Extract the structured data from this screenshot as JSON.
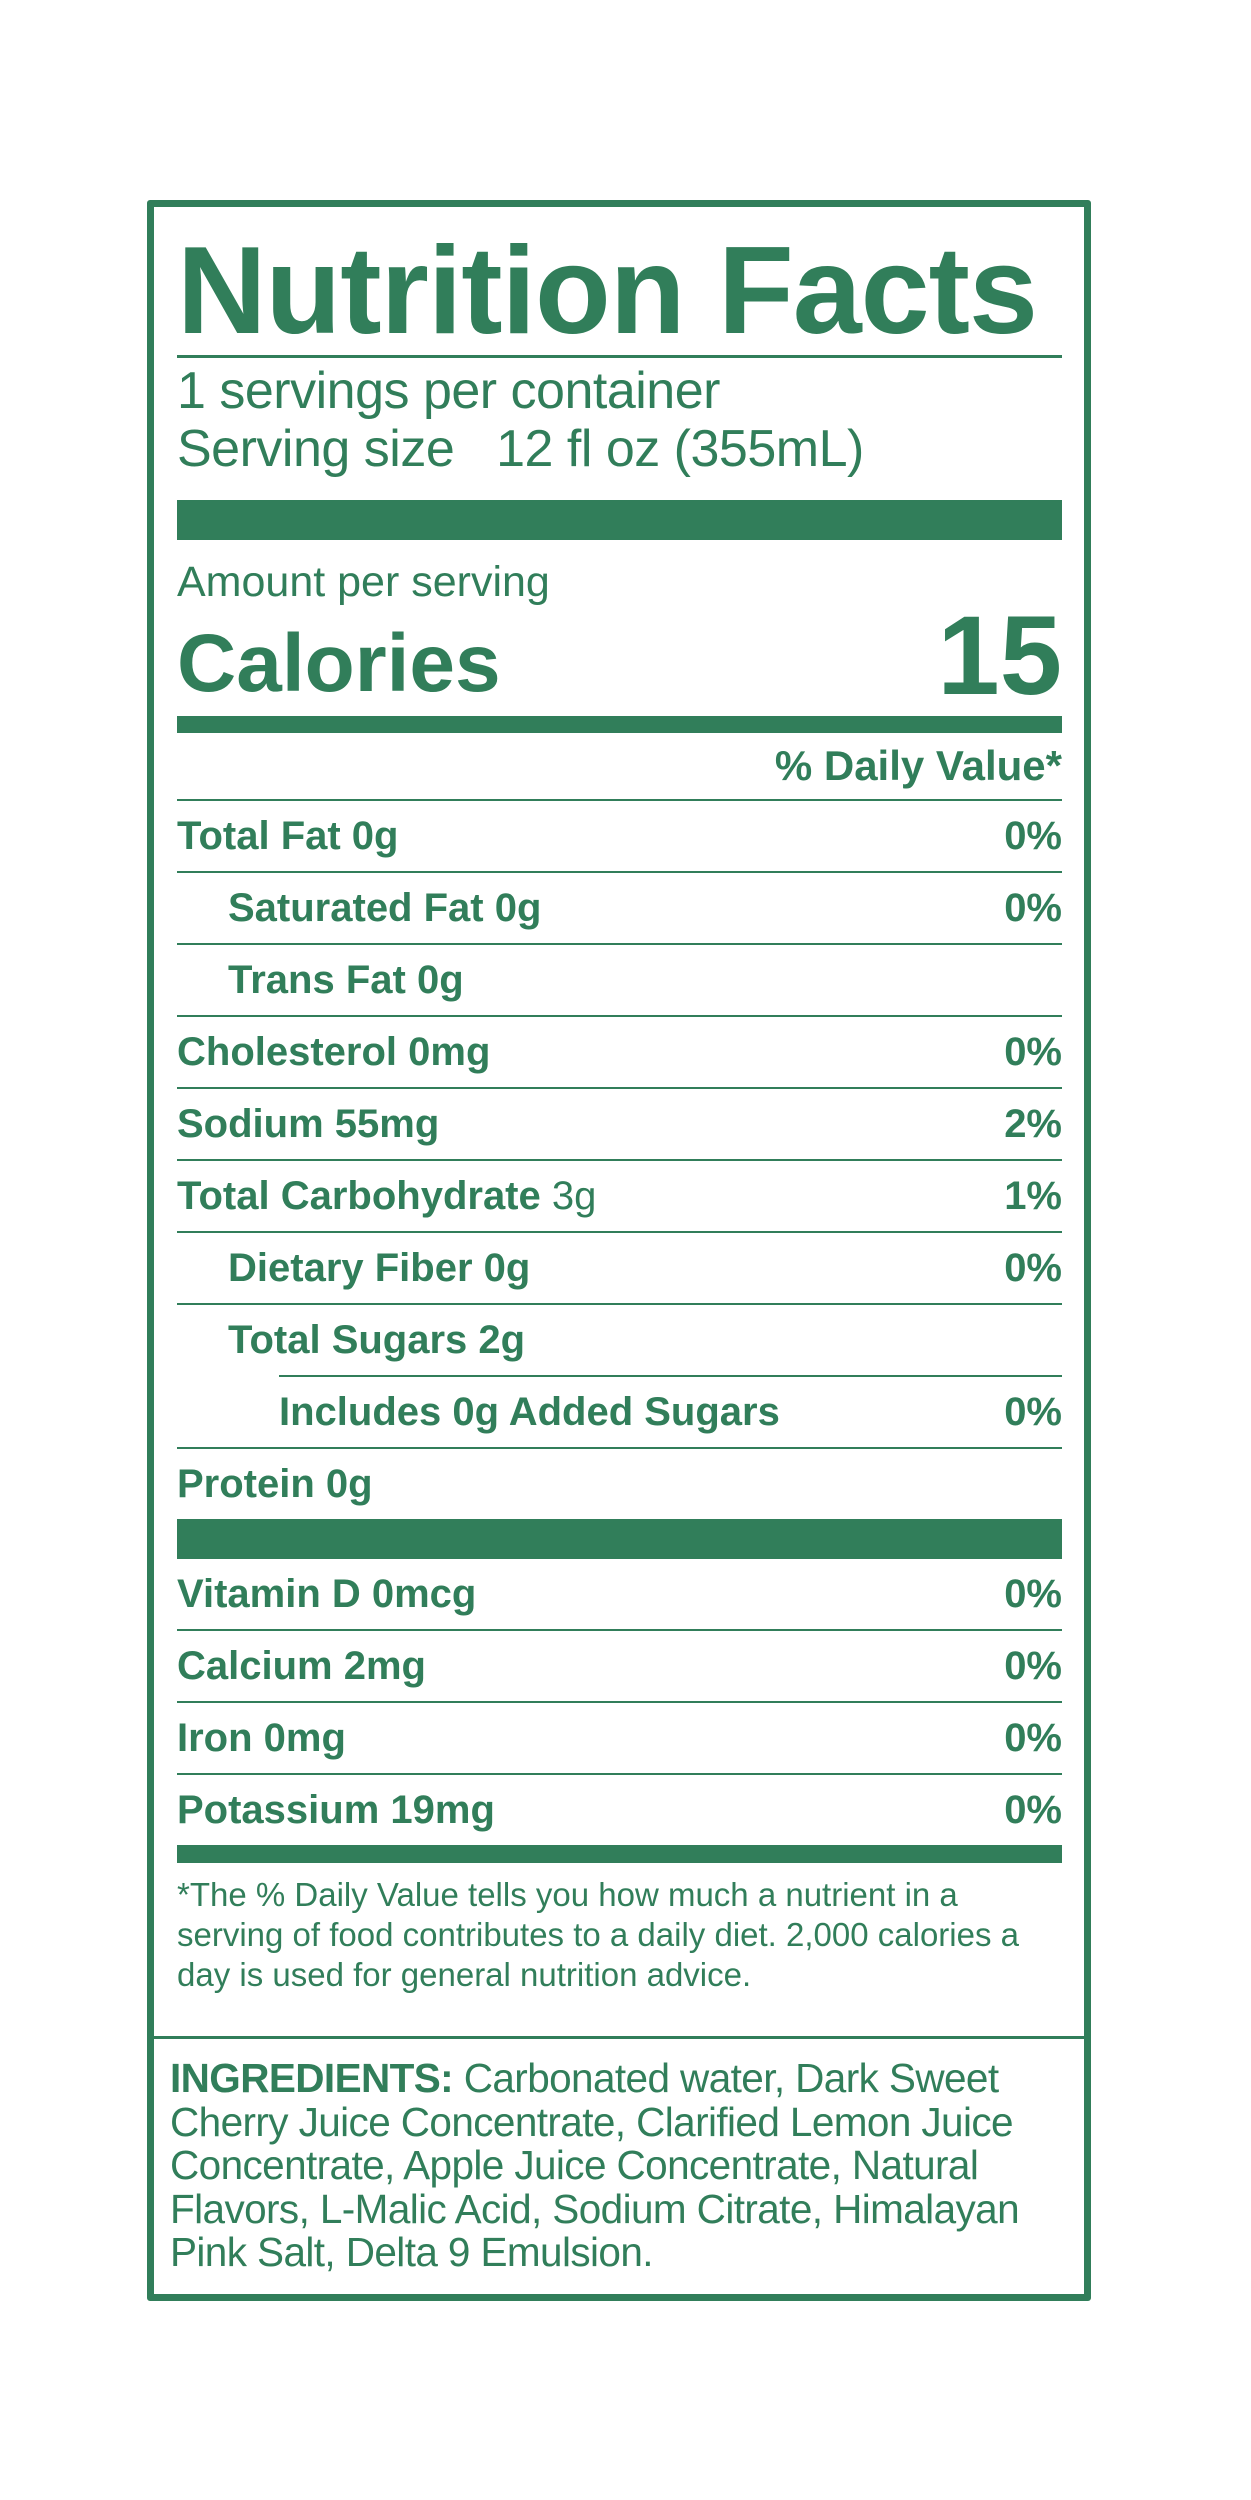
{
  "label": {
    "title": "Nutrition Facts",
    "servings_per_container": "1 servings per container",
    "serving_size_label": "Serving size",
    "serving_size_value": "12 fl oz (355mL)",
    "amount_per_serving": "Amount per serving",
    "calories_label": "Calories",
    "calories_value": "15",
    "daily_value_header": "% Daily Value*",
    "nutrients": [
      {
        "name": "Total Fat 0g",
        "dv": "0%"
      },
      {
        "name": "Saturated Fat 0g",
        "dv": "0%"
      },
      {
        "name": "Trans Fat 0g",
        "dv": ""
      },
      {
        "name": "Cholesterol 0mg",
        "dv": "0%"
      },
      {
        "name": "Sodium 55mg",
        "dv": "2%"
      },
      {
        "name": "Total Carbohydrate",
        "amount": "3g",
        "dv": "1%"
      },
      {
        "name": "Dietary Fiber 0g",
        "dv": "0%"
      },
      {
        "name": "Total Sugars 2g",
        "dv": ""
      },
      {
        "name": "Includes 0g Added Sugars",
        "dv": "0%"
      },
      {
        "name": "Protein 0g",
        "dv": ""
      }
    ],
    "vitamins": [
      {
        "name": "Vitamin D 0mcg",
        "dv": "0%"
      },
      {
        "name": "Calcium 2mg",
        "dv": "0%"
      },
      {
        "name": "Iron 0mg",
        "dv": "0%"
      },
      {
        "name": "Potassium 19mg",
        "dv": "0%"
      }
    ],
    "footnote": "*The % Daily Value tells you how much a nutrient in a serving of food contributes to a daily diet. 2,000 calories a day is used for general nutrition advice.",
    "ingredients_label": "INGREDIENTS:",
    "ingredients_text": "Carbonated water, Dark Sweet Cherry Juice Concentrate, Clarified Lemon Juice Concentrate, Apple Juice Concentrate, Natural Flavors, L-Malic Acid, Sodium Citrate, Himalayan Pink Salt, Delta 9 Emulsion."
  },
  "colors": {
    "label_green": "#317e5a",
    "background": "#ffffff"
  }
}
